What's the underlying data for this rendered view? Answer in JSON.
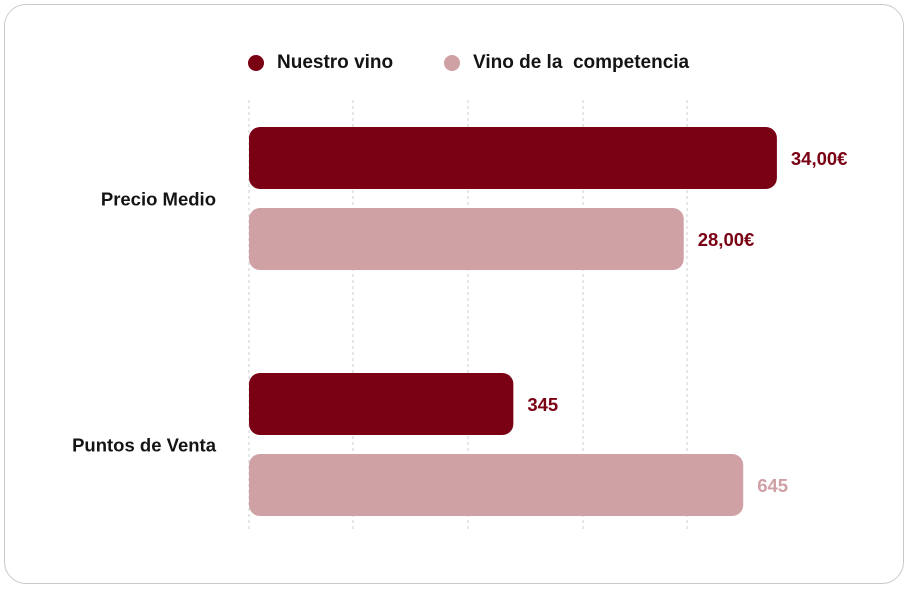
{
  "chart_data": {
    "type": "bar",
    "orientation": "horizontal",
    "categories": [
      "Precio Medio",
      "Puntos de Venta"
    ],
    "series": [
      {
        "name": "Nuestro vino",
        "color": "#7a0014",
        "label_color": "#7a0014",
        "values": [
          34,
          345
        ],
        "labels": [
          "34,00€",
          "345"
        ]
      },
      {
        "name": "Vino de la  competencia",
        "color": "#cfa0a4",
        "label_color_by_category": [
          "#7a0014",
          "#cfa0a4"
        ],
        "values": [
          28,
          645
        ],
        "labels": [
          "28,00€",
          "645"
        ]
      }
    ],
    "category_max": [
      38,
      770
    ],
    "grid": true,
    "legend_position": "top"
  }
}
